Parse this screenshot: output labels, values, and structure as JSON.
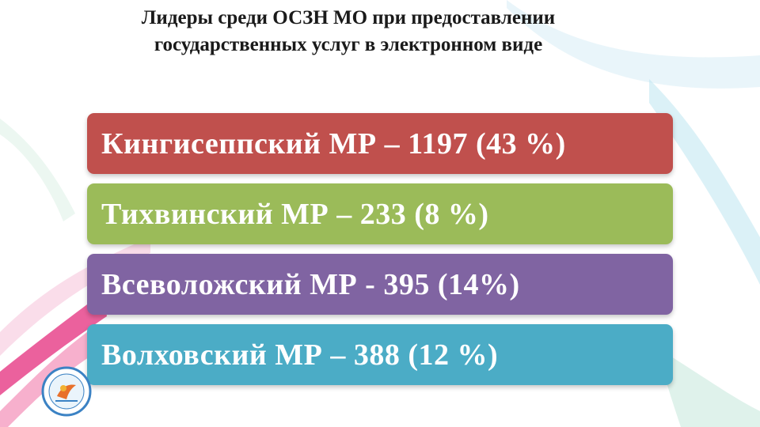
{
  "slide": {
    "title_line1": "Лидеры среди ОСЗН МО при предоставлении",
    "title_line2": "государственных услуг в электронном виде",
    "leaders": [
      {
        "label": "Кингисеппский МР – 1197 (43 %)",
        "color": "#c0504d"
      },
      {
        "label": "Тихвинский МР – 233 (8 %)",
        "color": "#9bbb59"
      },
      {
        "label": "Всеволожский МР - 395 (14%)",
        "color": "#8064a2"
      },
      {
        "label": "Волховский МР – 388 (12 %)",
        "color": "#4bacc6"
      }
    ],
    "logo_icon": "organization-emblem-icon"
  }
}
